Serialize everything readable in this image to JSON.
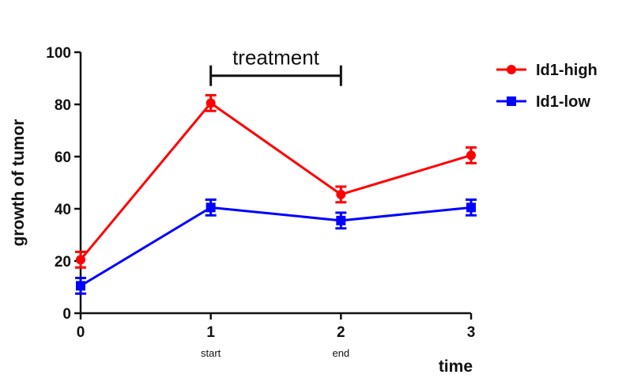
{
  "chart_data": {
    "type": "line",
    "title": "",
    "xlabel": "time",
    "ylabel": "growth of tumor",
    "x": [
      0,
      1,
      2,
      3
    ],
    "xticks": [
      "0",
      "1",
      "2",
      "3"
    ],
    "xsublabels": [
      "",
      "start",
      "end",
      ""
    ],
    "yticks": [
      "0",
      "20",
      "40",
      "60",
      "80",
      "100"
    ],
    "xlim": [
      0,
      3
    ],
    "ylim": [
      0,
      100
    ],
    "grid": false,
    "legend_position": "top-right",
    "series": [
      {
        "name": "Id1-high",
        "color": "#ff0000",
        "marker": "circle",
        "values": [
          20.5,
          80.5,
          45.5,
          60.5
        ],
        "errors": [
          3,
          3,
          3,
          3
        ]
      },
      {
        "name": "Id1-low",
        "color": "#0000ff",
        "marker": "square",
        "values": [
          10.5,
          40.5,
          35.5,
          40.5
        ],
        "errors": [
          3,
          3,
          3,
          3
        ]
      }
    ],
    "annotation": {
      "label": "treatment",
      "x_start": 1,
      "x_end": 2,
      "y": 91
    }
  }
}
